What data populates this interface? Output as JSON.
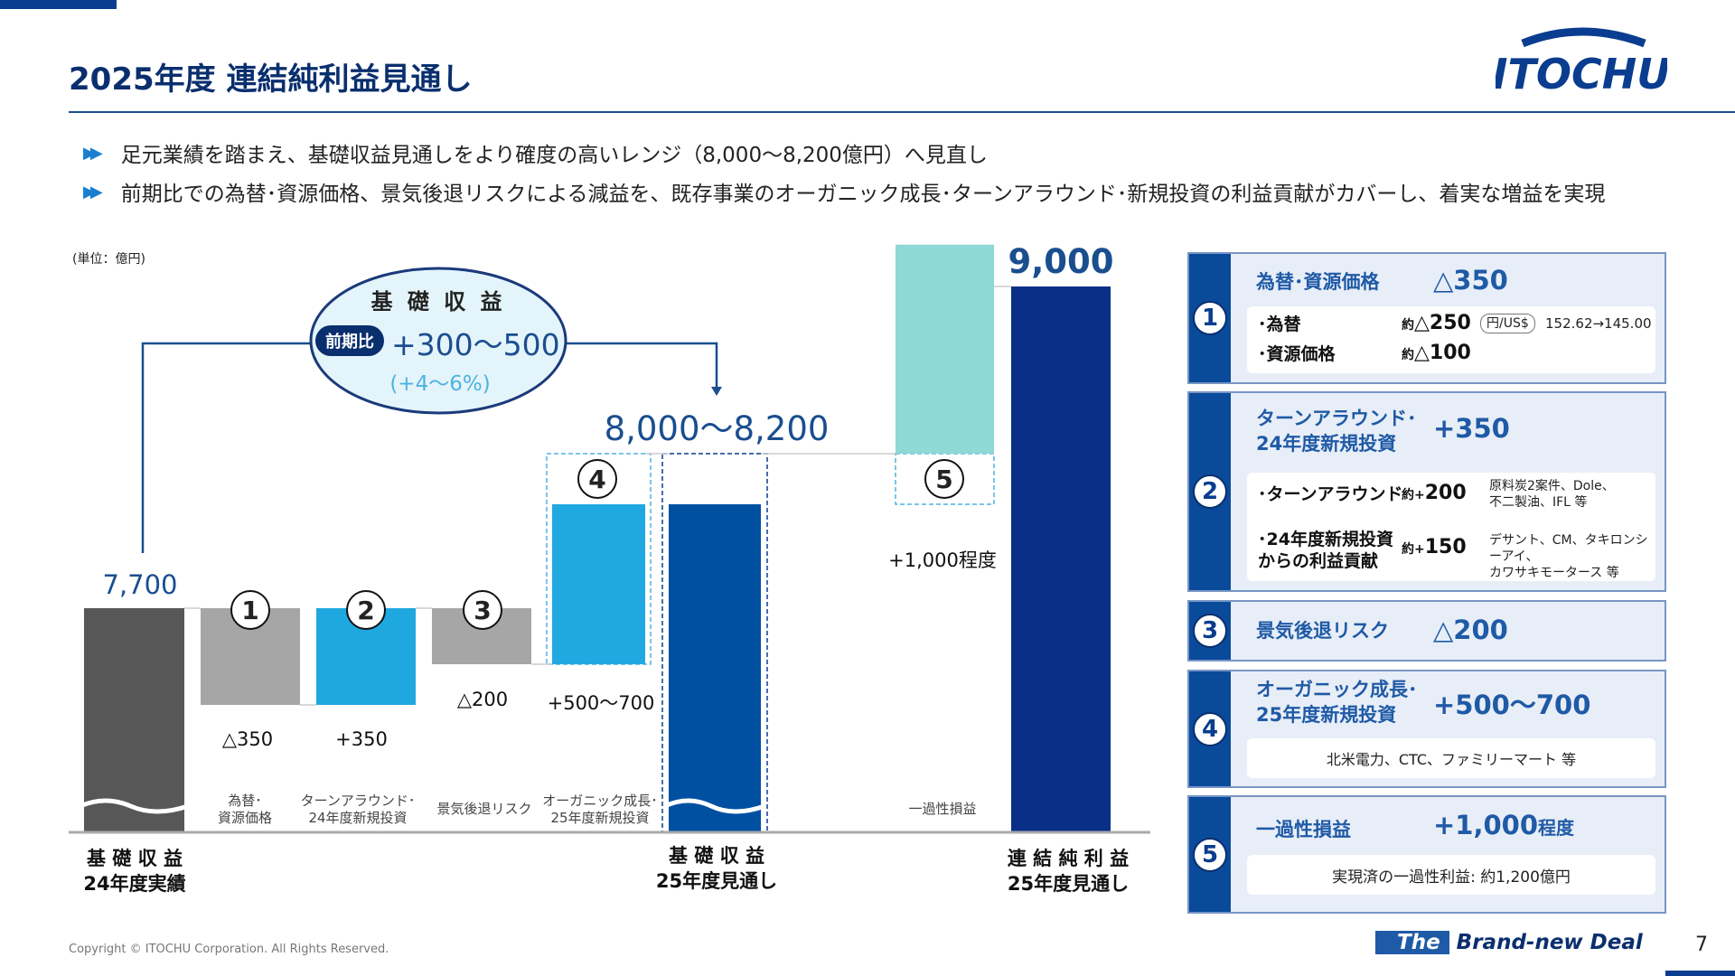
{
  "header": {
    "title": "2025年度 連結純利益見通し",
    "logo": "ITOCHU"
  },
  "bullets": [
    "足元業績を踏まえ、基礎収益見通しをより確度の高いレンジ（8,000〜8,200億円）へ見直し",
    "前期比での為替･資源価格、景気後退リスクによる減益を、既存事業のオーガニック成長･ターンアラウンド･新規投資の利益貢献がカバーし、着実な増益を実現"
  ],
  "chart_data": {
    "type": "waterfall",
    "unit": "(単位：億円)",
    "steps": [
      {
        "id": "base24",
        "kind": "total",
        "value": 7700,
        "label": "7,700",
        "bottom_label": [
          "基 礎 収 益",
          "24年度実績"
        ],
        "color": "#575757"
      },
      {
        "id": "s1",
        "kind": "delta",
        "number": "1",
        "value": -350,
        "label": "△350",
        "category": [
          "為替･",
          "資源価格"
        ],
        "color": "#a6a6a6"
      },
      {
        "id": "s2",
        "kind": "delta",
        "number": "2",
        "value": 350,
        "label": "+350",
        "category": [
          "ターンアラウンド･",
          "24年度新規投資"
        ],
        "color": "#1fa8e0"
      },
      {
        "id": "s3",
        "kind": "delta",
        "number": "3",
        "value": -200,
        "label": "△200",
        "category": [
          "景気後退リスク"
        ],
        "color": "#a6a6a6"
      },
      {
        "id": "s4",
        "kind": "delta_range",
        "number": "4",
        "value": [
          500,
          700
        ],
        "label": "+500〜700",
        "category": [
          "オーガニック成長･",
          "25年度新規投資"
        ],
        "color": "#20a9e1"
      },
      {
        "id": "base25",
        "kind": "total_range",
        "value": [
          8000,
          8200
        ],
        "label": "8,000〜8,200",
        "bottom_label": [
          "基 礎 収 益",
          "25年度見通し"
        ],
        "color": "#0050a2"
      },
      {
        "id": "s5",
        "kind": "delta",
        "number": "5",
        "value": 1000,
        "label": "+1,000程度",
        "category": [
          "一過性損益"
        ],
        "color": "#8ed8d6"
      },
      {
        "id": "total",
        "kind": "total",
        "value": 9000,
        "label": "9,000",
        "bottom_label": [
          "連 結 純 利 益",
          "25年度見通し"
        ],
        "color": "#0a2f87"
      }
    ],
    "callout": {
      "title": "基 礎 収 益",
      "badge": "前期比",
      "range": "+300〜500",
      "pct": "(+4〜6%)"
    }
  },
  "panels": [
    {
      "num": "1",
      "title": [
        "為替･資源価格"
      ],
      "value": "△350",
      "items": [
        {
          "label": "･為替",
          "amount_prefix": "約",
          "amount": "△250",
          "tag": "円/US$",
          "note": "152.62→145.00"
        },
        {
          "label": "･資源価格",
          "amount_prefix": "約",
          "amount": "△100"
        }
      ]
    },
    {
      "num": "2",
      "title": [
        "ターンアラウンド･",
        "24年度新規投資"
      ],
      "value": "+350",
      "items": [
        {
          "label": "･ターンアラウンド",
          "amount_prefix": "約+",
          "amount": "200",
          "note": [
            "原料炭2案件、Dole、",
            "不二製油、IFL 等"
          ]
        },
        {
          "label": [
            "･24年度新規投資",
            "からの利益貢献"
          ],
          "amount_prefix": "約+",
          "amount": "150",
          "note": [
            "デサント、CM、タキロンシーアイ、",
            "カワサキモータース 等"
          ]
        }
      ]
    },
    {
      "num": "3",
      "title": [
        "景気後退リスク"
      ],
      "value": "△200"
    },
    {
      "num": "4",
      "title": [
        "オーガニック成長･",
        "25年度新規投資"
      ],
      "value": "+500〜700",
      "detail": "北米電力、CTC、ファミリーマート 等"
    },
    {
      "num": "5",
      "title": [
        "一過性損益"
      ],
      "value": "+1,000",
      "value_suffix": "程度",
      "detail": "実現済の一過性利益: 約1,200億円"
    }
  ],
  "footer": {
    "copyright": "Copyright © ITOCHU Corporation. All Rights Reserved.",
    "brand_the": "The",
    "brand_rest": "Brand-new Deal",
    "page": "7"
  },
  "colors": {
    "brand": "#0a3d8f",
    "accent": "#1fa8e0",
    "panel_bg": "#e8eef7"
  }
}
